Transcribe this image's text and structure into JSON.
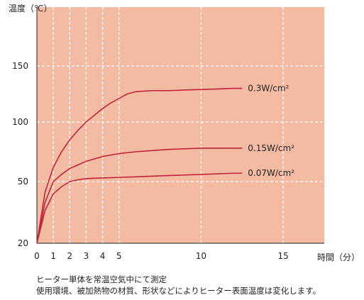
{
  "chart_data": {
    "type": "line",
    "ylabel": "温度（℃）",
    "xlabel": "時間（分）",
    "x_ticks": [
      0,
      1,
      2,
      3,
      4,
      5,
      10,
      15
    ],
    "y_ticks": [
      20,
      50,
      100,
      150
    ],
    "x_range": [
      0,
      17.5
    ],
    "y_range": [
      20,
      213
    ],
    "grid": "dashed-vertical-and-horizontal",
    "background": "#f4bba3",
    "line_color": "#c0243a",
    "series": [
      {
        "name": "0.3W/cm²",
        "points": [
          [
            0,
            20
          ],
          [
            0.5,
            45
          ],
          [
            1,
            62
          ],
          [
            1.5,
            75
          ],
          [
            2,
            85
          ],
          [
            2.5,
            93
          ],
          [
            3,
            100
          ],
          [
            3.5,
            106
          ],
          [
            4,
            112
          ],
          [
            4.5,
            117
          ],
          [
            5,
            121
          ],
          [
            5.5,
            125
          ],
          [
            6,
            127
          ],
          [
            7,
            128
          ],
          [
            8,
            128
          ],
          [
            9,
            128.5
          ],
          [
            10,
            129
          ],
          [
            11,
            129.5
          ],
          [
            12,
            130
          ],
          [
            12.5,
            130
          ]
        ]
      },
      {
        "name": "0.15W/cm²",
        "points": [
          [
            0,
            20
          ],
          [
            0.5,
            40
          ],
          [
            1,
            50
          ],
          [
            1.5,
            56
          ],
          [
            2,
            61
          ],
          [
            2.5,
            64
          ],
          [
            3,
            67
          ],
          [
            3.5,
            69
          ],
          [
            4,
            71
          ],
          [
            5,
            73.5
          ],
          [
            6,
            75
          ],
          [
            7,
            76
          ],
          [
            8,
            77
          ],
          [
            9,
            77.5
          ],
          [
            10,
            78
          ],
          [
            11,
            78
          ],
          [
            12,
            78
          ],
          [
            12.5,
            78
          ]
        ]
      },
      {
        "name": "0.07W/cm²",
        "points": [
          [
            0,
            20
          ],
          [
            0.5,
            36
          ],
          [
            1,
            44
          ],
          [
            1.5,
            47.5
          ],
          [
            2,
            50
          ],
          [
            2.5,
            51.5
          ],
          [
            3,
            52.5
          ],
          [
            4,
            53
          ],
          [
            5,
            53.5
          ],
          [
            6,
            54
          ],
          [
            8,
            55
          ],
          [
            10,
            56
          ],
          [
            12,
            57
          ],
          [
            12.5,
            57
          ]
        ]
      }
    ]
  },
  "notes": [
    "ヒーター単体を常温空気中にて測定",
    "使用環境、被加熱物の材質、形状などによりヒーター表面温度は変化します。"
  ]
}
